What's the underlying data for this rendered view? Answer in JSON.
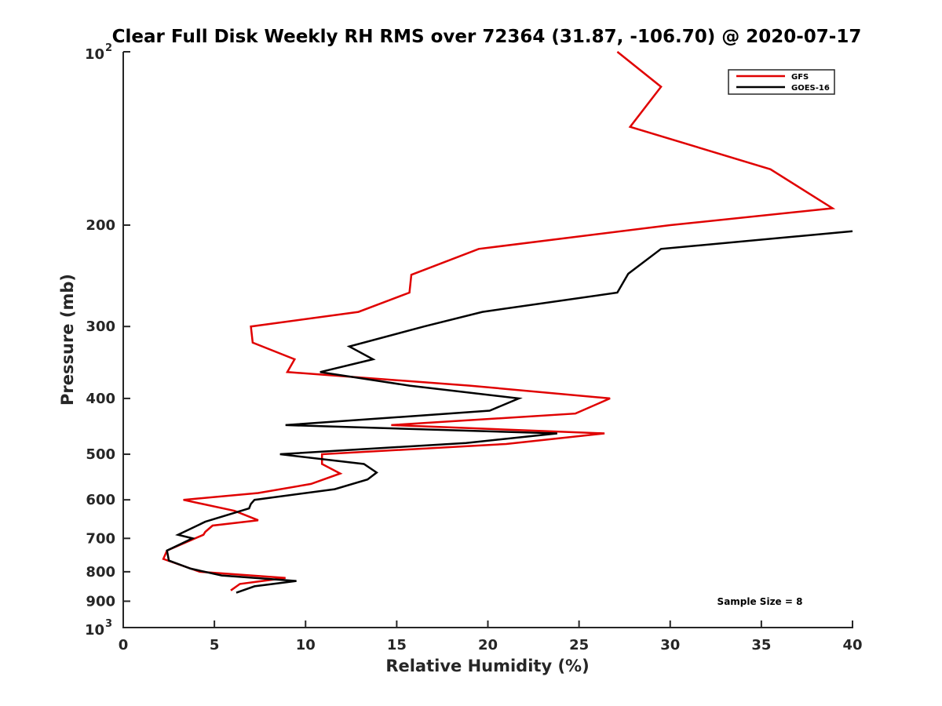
{
  "chart_data": {
    "type": "line",
    "title": "Clear Full Disk Weekly RH RMS over 72364 (31.87, -106.70) @ 2020-07-17",
    "xlabel": "Relative Humidity (%)",
    "ylabel": "Pressure (mb)",
    "xlim": [
      0,
      40
    ],
    "ylim": [
      100,
      1000
    ],
    "y_scale": "log",
    "y_reversed": true,
    "grid": false,
    "legend_position": "top-right",
    "x_ticks": [
      0,
      5,
      10,
      15,
      20,
      25,
      30,
      35,
      40
    ],
    "x_tick_labels": [
      "0",
      "5",
      "10",
      "15",
      "20",
      "25",
      "30",
      "35",
      "40"
    ],
    "y_ticks": [
      200,
      300,
      400,
      500,
      600,
      700,
      800,
      900
    ],
    "y_tick_labels": [
      "200",
      "300",
      "400",
      "500",
      "600",
      "700",
      "800",
      "900"
    ],
    "y_end_labels": {
      "top": {
        "value": 100,
        "base": "10",
        "exp": "2"
      },
      "bottom": {
        "value": 1000,
        "base": "10",
        "exp": "3"
      }
    },
    "series": [
      {
        "name": "GFS",
        "color": "#e00000",
        "points": [
          [
            27.1,
            100
          ],
          [
            29.5,
            115
          ],
          [
            27.8,
            135
          ],
          [
            35.5,
            160
          ],
          [
            38.9,
            187
          ],
          [
            30.0,
            200
          ],
          [
            19.5,
            220
          ],
          [
            15.8,
            244
          ],
          [
            15.7,
            262
          ],
          [
            12.9,
            283
          ],
          [
            7.0,
            300
          ],
          [
            7.1,
            320
          ],
          [
            9.4,
            342
          ],
          [
            9.0,
            360
          ],
          [
            19.0,
            380
          ],
          [
            26.7,
            400
          ],
          [
            24.8,
            425
          ],
          [
            14.7,
            445
          ],
          [
            26.4,
            460
          ],
          [
            21.0,
            480
          ],
          [
            10.9,
            500
          ],
          [
            10.9,
            520
          ],
          [
            11.9,
            540
          ],
          [
            10.3,
            563
          ],
          [
            7.4,
            584
          ],
          [
            3.3,
            600
          ],
          [
            6.1,
            627
          ],
          [
            7.4,
            651
          ],
          [
            4.9,
            665
          ],
          [
            4.5,
            682
          ],
          [
            4.4,
            690
          ],
          [
            2.4,
            735
          ],
          [
            2.2,
            760
          ],
          [
            4.2,
            800
          ],
          [
            8.9,
            820
          ],
          [
            6.4,
            840
          ],
          [
            5.9,
            862
          ]
        ]
      },
      {
        "name": "GOES-16",
        "color": "#000000",
        "points": [
          [
            40.0,
            205
          ],
          [
            29.5,
            220
          ],
          [
            27.7,
            243
          ],
          [
            27.1,
            262
          ],
          [
            19.7,
            283
          ],
          [
            16.5,
            300
          ],
          [
            12.4,
            325
          ],
          [
            13.7,
            342
          ],
          [
            10.8,
            360
          ],
          [
            15.7,
            380
          ],
          [
            21.7,
            400
          ],
          [
            20.1,
            420
          ],
          [
            8.9,
            445
          ],
          [
            23.8,
            460
          ],
          [
            18.8,
            478
          ],
          [
            8.6,
            500
          ],
          [
            13.2,
            520
          ],
          [
            13.9,
            538
          ],
          [
            13.4,
            553
          ],
          [
            11.6,
            575
          ],
          [
            7.2,
            600
          ],
          [
            7.0,
            610
          ],
          [
            6.9,
            621
          ],
          [
            4.5,
            655
          ],
          [
            3.0,
            690
          ],
          [
            3.8,
            700
          ],
          [
            2.4,
            735
          ],
          [
            2.5,
            765
          ],
          [
            3.7,
            790
          ],
          [
            5.4,
            812
          ],
          [
            9.5,
            830
          ],
          [
            7.2,
            848
          ],
          [
            6.2,
            870
          ]
        ]
      }
    ],
    "annotations": [
      {
        "text": "Sample Size = 8"
      }
    ]
  }
}
